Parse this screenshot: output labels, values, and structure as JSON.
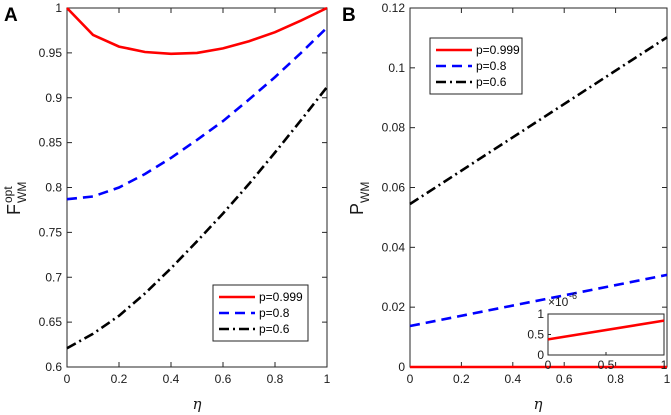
{
  "chart_data": [
    {
      "type": "line",
      "panel_label": "A",
      "title": "",
      "xlabel": "η",
      "ylabel_main": "F",
      "ylabel_sup": "opt",
      "ylabel_sub": "WM",
      "xlim": [
        0,
        1
      ],
      "ylim": [
        0.6,
        1.0
      ],
      "xticks": [
        0,
        0.2,
        0.4,
        0.6,
        0.8,
        1
      ],
      "xtick_labels": [
        "0",
        "0.2",
        "0.4",
        "0.6",
        "0.8",
        "1"
      ],
      "yticks": [
        0.6,
        0.65,
        0.7,
        0.75,
        0.8,
        0.85,
        0.9,
        0.95,
        1
      ],
      "ytick_labels": [
        "0.6",
        "0.65",
        "0.7",
        "0.75",
        "0.8",
        "0.85",
        "0.9",
        "0.95",
        "1"
      ],
      "legend_position": "bottom-right",
      "x": [
        0,
        0.1,
        0.2,
        0.3,
        0.4,
        0.5,
        0.6,
        0.7,
        0.8,
        0.9,
        1.0
      ],
      "series": [
        {
          "name": "p=0.999",
          "color": "#ff0000",
          "dash": "solid",
          "values": [
            1.0,
            0.97,
            0.957,
            0.951,
            0.949,
            0.95,
            0.955,
            0.963,
            0.973,
            0.986,
            1.0
          ]
        },
        {
          "name": "p=0.8",
          "color": "#0000ff",
          "dash": "dashed",
          "values": [
            0.787,
            0.79,
            0.8,
            0.815,
            0.833,
            0.853,
            0.874,
            0.898,
            0.923,
            0.95,
            0.978
          ]
        },
        {
          "name": "p=0.6",
          "color": "#000000",
          "dash": "dashdot",
          "values": [
            0.621,
            0.637,
            0.657,
            0.682,
            0.71,
            0.74,
            0.771,
            0.804,
            0.839,
            0.875,
            0.912
          ]
        }
      ]
    },
    {
      "type": "line",
      "panel_label": "B",
      "title": "",
      "xlabel": "η",
      "ylabel_main": "P",
      "ylabel_sub": "WM",
      "xlim": [
        0,
        1
      ],
      "ylim": [
        0,
        0.12
      ],
      "xticks": [
        0,
        0.2,
        0.4,
        0.6,
        0.8,
        1
      ],
      "xtick_labels": [
        "0",
        "0.2",
        "0.4",
        "0.6",
        "0.8",
        "1"
      ],
      "yticks": [
        0,
        0.02,
        0.04,
        0.06,
        0.08,
        0.1,
        0.12
      ],
      "ytick_labels": [
        "0",
        "0.02",
        "0.04",
        "0.06",
        "0.08",
        "0.1",
        "0.12"
      ],
      "legend_position": "top-left",
      "x": [
        0,
        1
      ],
      "series": [
        {
          "name": "p=0.999",
          "color": "#ff0000",
          "dash": "solid",
          "values": [
            0.0,
            0.0
          ]
        },
        {
          "name": "p=0.8",
          "color": "#0000ff",
          "dash": "dashed",
          "values": [
            0.0137,
            0.0308
          ]
        },
        {
          "name": "p=0.6",
          "color": "#000000",
          "dash": "dashdot",
          "values": [
            0.0545,
            0.1102
          ]
        }
      ],
      "inset": {
        "type": "line",
        "location": "bottom-right",
        "xlim": [
          0,
          1
        ],
        "ylim": [
          0,
          1
        ],
        "scale_label": "×10",
        "scale_exponent": "-6",
        "xticks": [
          0,
          0.5,
          1
        ],
        "xtick_labels": [
          "0",
          "0.5",
          "1"
        ],
        "yticks": [
          0,
          0.5,
          1
        ],
        "ytick_labels": [
          "0",
          "0.5",
          "1"
        ],
        "series": [
          {
            "name": "p=0.999",
            "color": "#ff0000",
            "x": [
              0,
              1
            ],
            "values": [
              0.38,
              0.84
            ]
          }
        ]
      }
    }
  ]
}
